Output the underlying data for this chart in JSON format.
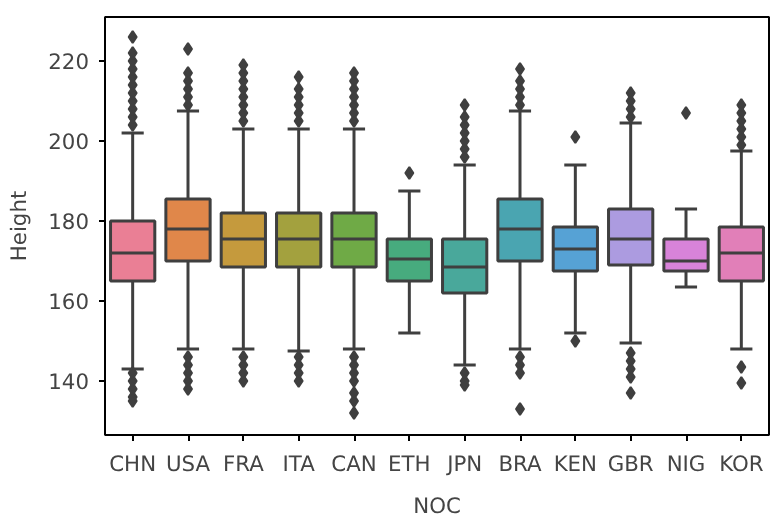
{
  "chart_data": {
    "type": "box",
    "xlabel": "NOC",
    "ylabel": "Height",
    "categories": [
      "CHN",
      "USA",
      "FRA",
      "ITA",
      "CAN",
      "ETH",
      "JPN",
      "BRA",
      "KEN",
      "GBR",
      "NIG",
      "KOR"
    ],
    "colors": [
      "#ea7f95",
      "#e0874a",
      "#c59a3d",
      "#a3a13e",
      "#6faa46",
      "#47ab7e",
      "#49a89b",
      "#4aa5b1",
      "#56a2d5",
      "#ac9be0",
      "#d883d9",
      "#e17fb8"
    ],
    "boxes": [
      {
        "low": 143,
        "q1": 165,
        "median": 172,
        "q3": 180,
        "high": 202,
        "outliers": [
          204,
          206,
          208,
          210,
          212,
          214,
          216,
          218,
          220,
          222,
          226,
          142,
          140,
          138,
          136,
          135
        ]
      },
      {
        "low": 148,
        "q1": 170,
        "median": 178,
        "q3": 185.5,
        "high": 207.5,
        "outliers": [
          209,
          211,
          213,
          215,
          217,
          223,
          146,
          144,
          142,
          140,
          138
        ]
      },
      {
        "low": 148,
        "q1": 168.5,
        "median": 175.5,
        "q3": 182,
        "high": 203,
        "outliers": [
          205,
          207,
          209,
          211,
          213,
          215,
          217,
          219,
          146,
          144,
          142,
          140
        ]
      },
      {
        "low": 147.5,
        "q1": 168.5,
        "median": 175.5,
        "q3": 182,
        "high": 203,
        "outliers": [
          205,
          207,
          209,
          211,
          213,
          216,
          146,
          144,
          142,
          140
        ]
      },
      {
        "low": 148,
        "q1": 168.5,
        "median": 175.5,
        "q3": 182,
        "high": 203,
        "outliers": [
          205,
          207,
          209,
          211,
          213,
          215,
          217,
          146,
          144,
          142,
          140,
          137,
          135,
          132
        ]
      },
      {
        "low": 152,
        "q1": 165,
        "median": 170.5,
        "q3": 175.5,
        "high": 187.5,
        "outliers": [
          192
        ]
      },
      {
        "low": 144,
        "q1": 162,
        "median": 168.5,
        "q3": 175.5,
        "high": 194,
        "outliers": [
          196,
          198,
          200,
          202,
          204,
          206,
          209,
          142,
          140,
          139
        ]
      },
      {
        "low": 148,
        "q1": 170,
        "median": 178,
        "q3": 185.5,
        "high": 207.5,
        "outliers": [
          209,
          211,
          213,
          215,
          218,
          146,
          144,
          142,
          133
        ]
      },
      {
        "low": 152,
        "q1": 167.5,
        "median": 173,
        "q3": 178.5,
        "high": 194,
        "outliers": [
          201,
          150
        ]
      },
      {
        "low": 149.5,
        "q1": 169,
        "median": 175.5,
        "q3": 183,
        "high": 204.5,
        "outliers": [
          206,
          208,
          210,
          212,
          147,
          145,
          143,
          141,
          137
        ]
      },
      {
        "low": 163.5,
        "q1": 167.5,
        "median": 170,
        "q3": 175.5,
        "high": 183,
        "outliers": [
          207
        ]
      },
      {
        "low": 148,
        "q1": 165,
        "median": 172,
        "q3": 178.5,
        "high": 197.5,
        "outliers": [
          199,
          201,
          203,
          205,
          207,
          209,
          143.5,
          139.5
        ]
      }
    ],
    "ylim": [
      126.5,
      231
    ],
    "yticks": [
      140,
      160,
      180,
      200,
      220
    ],
    "grid": false,
    "marker": "diamond"
  }
}
